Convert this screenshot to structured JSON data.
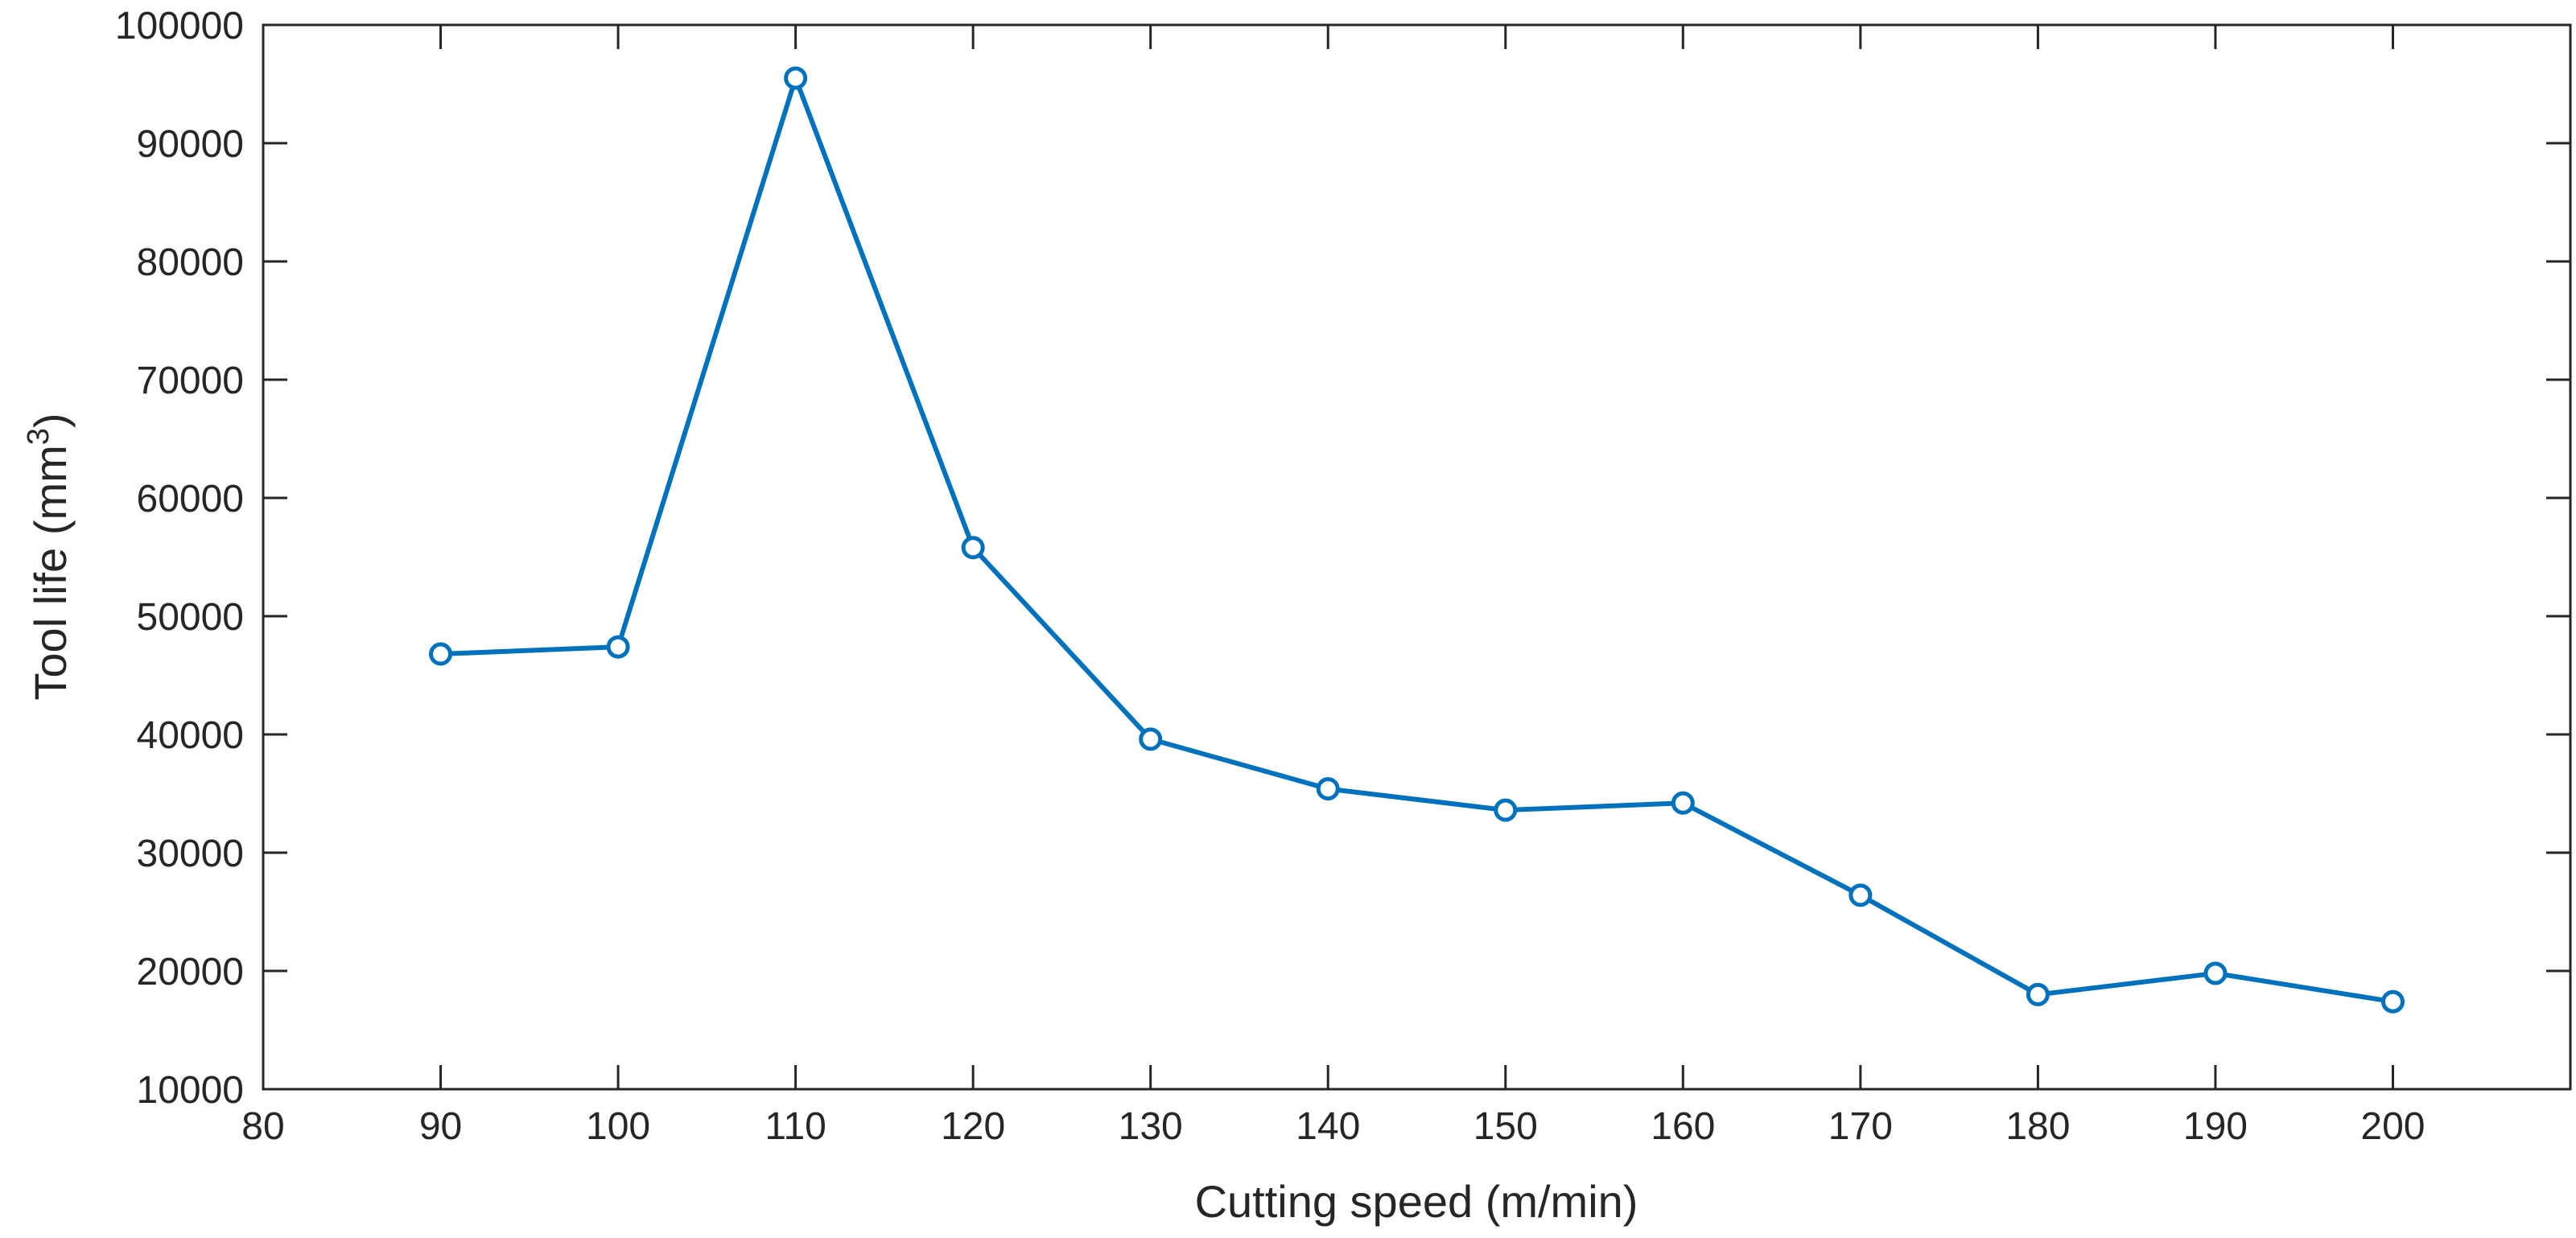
{
  "chart_data": {
    "type": "line",
    "title": "",
    "xlabel": "Cutting speed (m/min)",
    "ylabel_text": "Tool life (mm",
    "ylabel_superscript": "3",
    "ylabel_close": ")",
    "xlim": [
      80,
      210
    ],
    "ylim": [
      10000,
      100000
    ],
    "xticks": [
      80,
      90,
      100,
      110,
      120,
      130,
      140,
      150,
      160,
      170,
      180,
      190,
      200
    ],
    "yticks": [
      10000,
      20000,
      30000,
      40000,
      50000,
      60000,
      70000,
      80000,
      90000,
      100000
    ],
    "grid": false,
    "legend": "none",
    "series": [
      {
        "color": "#0072BD",
        "marker": "circle",
        "x": [
          90,
          100,
          110,
          120,
          130,
          140,
          150,
          160,
          170,
          180,
          190,
          200
        ],
        "y": [
          46800,
          47400,
          95500,
          55800,
          39600,
          35400,
          33600,
          34200,
          26400,
          18000,
          19800,
          17400
        ]
      }
    ]
  }
}
